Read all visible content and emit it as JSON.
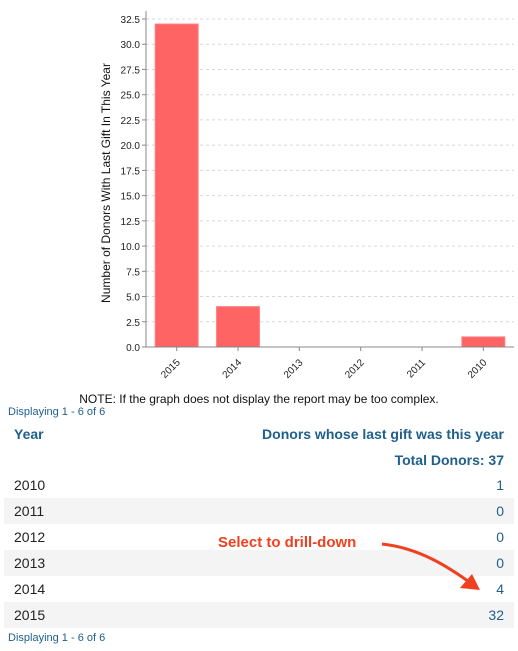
{
  "chart_data": {
    "type": "bar",
    "categories": [
      "2015",
      "2014",
      "2013",
      "2012",
      "2011",
      "2010"
    ],
    "values": [
      32,
      4,
      0,
      0,
      0,
      1
    ],
    "ylabel": "Number of Donors With Last Gift In This Year",
    "xlabel": "",
    "ylim": [
      0,
      32.5
    ],
    "yticks": [
      "0.0",
      "2.5",
      "5.0",
      "7.5",
      "10.0",
      "12.5",
      "15.0",
      "17.5",
      "20.0",
      "22.5",
      "25.0",
      "27.5",
      "30.0",
      "32.5"
    ],
    "bar_color": "#ff6464",
    "grid": true
  },
  "note": "NOTE: If the graph does not display the report may be too complex.",
  "paging_top": "Displaying 1 - 6 of 6",
  "paging_bottom": "Displaying 1 - 6 of 6",
  "table": {
    "col_year": "Year",
    "col_donors": "Donors whose last gift was this year",
    "total": "Total Donors: 37",
    "rows": [
      {
        "year": "2010",
        "count": "1"
      },
      {
        "year": "2011",
        "count": "0"
      },
      {
        "year": "2012",
        "count": "0"
      },
      {
        "year": "2013",
        "count": "0"
      },
      {
        "year": "2014",
        "count": "4"
      },
      {
        "year": "2015",
        "count": "32"
      }
    ]
  },
  "callout": "Select to drill-down",
  "colors": {
    "link": "#1f5f8b",
    "callout": "#f04020"
  }
}
